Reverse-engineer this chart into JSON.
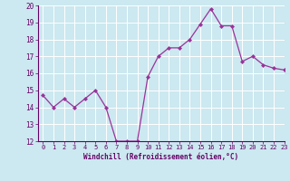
{
  "x": [
    0,
    1,
    2,
    3,
    4,
    5,
    6,
    7,
    8,
    9,
    10,
    11,
    12,
    13,
    14,
    15,
    16,
    17,
    18,
    19,
    20,
    21,
    22,
    23
  ],
  "y": [
    14.7,
    14.0,
    14.5,
    14.0,
    14.5,
    15.0,
    14.0,
    12.0,
    12.0,
    12.0,
    15.8,
    17.0,
    17.5,
    17.5,
    18.0,
    18.9,
    19.8,
    18.8,
    18.8,
    16.7,
    17.0,
    16.5,
    16.3,
    16.2
  ],
  "line_color": "#993399",
  "marker_color": "#993399",
  "bg_color": "#cce8f0",
  "grid_color": "#ffffff",
  "xlabel": "Windchill (Refroidissement éolien,°C)",
  "xlabel_color": "#660066",
  "tick_color": "#660066",
  "label_color": "#660066",
  "ylim_min": 12,
  "ylim_max": 20,
  "xlim_min": -0.5,
  "xlim_max": 23,
  "yticks": [
    12,
    13,
    14,
    15,
    16,
    17,
    18,
    19,
    20
  ],
  "xticks": [
    0,
    1,
    2,
    3,
    4,
    5,
    6,
    7,
    8,
    9,
    10,
    11,
    12,
    13,
    14,
    15,
    16,
    17,
    18,
    19,
    20,
    21,
    22,
    23
  ]
}
